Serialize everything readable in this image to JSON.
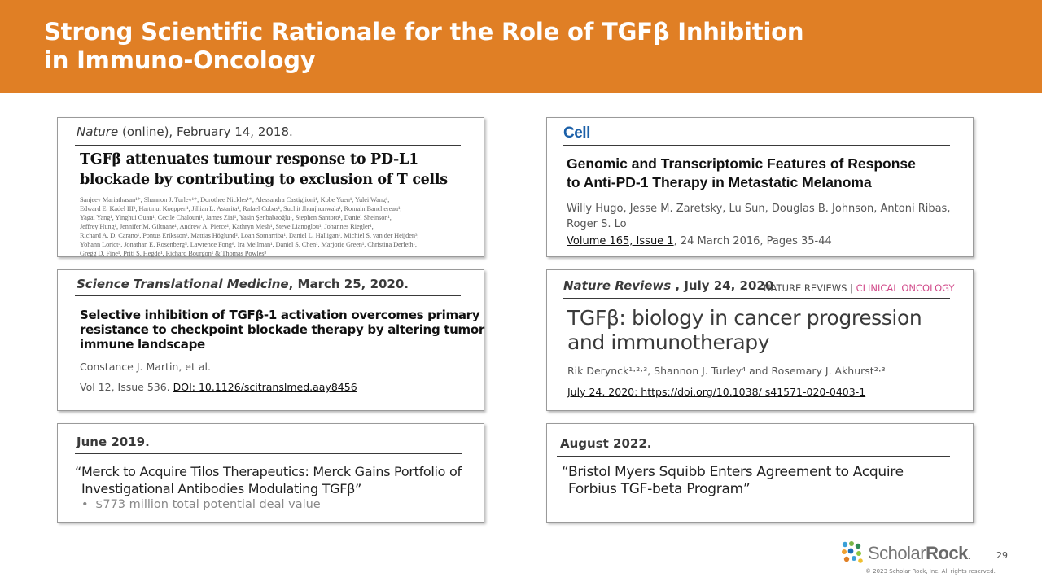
{
  "header": {
    "title_line1": "Strong Scientific Rationale for the Role of TGFβ Inhibition",
    "title_line2": "in Immuno-Oncology"
  },
  "card1": {
    "journal": "Nature",
    "date": " (online), February 14, 2018.",
    "title_line1": "TGFβ attenuates tumour response to PD-L1",
    "title_line2": "blockade by contributing  to exclusion  of T cells",
    "authors": [
      "Sanjeev Mariathasan¹*, Shannon J. Turley¹*, Dorothee Nickles¹*, Alessandra Castiglioni¹, Kobe Yuen¹, Yulei Wang¹,",
      "Edward E. Kadel III¹, Hartmut Koeppen¹, Jillian L. Astarita¹, Rafael Cubas¹, Suchit Jhunjhunwala¹, Romain Banchereau¹,",
      "Yagai Yang¹, Yinghui Guan¹, Cecile Chalouni¹, James Ziai¹, Yasin Şenbabaoğlu¹, Stephen Santoro¹, Daniel Sheinson¹,",
      "Jeffrey Hung¹, Jennifer M. Giltnane¹, Andrew A. Pierce¹, Kathryn Mesh¹, Steve Lianoglou¹, Johannes Riegler¹,",
      "Richard A. D. Carano¹, Pontus Eriksson², Mattias Höglund², Loan Somarriba¹, Daniel L. Halligan¹, Michiel S. van der Heijden³,",
      "Yohann Loriot⁴, Jonathan E. Rosenberg⁵, Lawrence Fong⁶, Ira Mellman¹, Daniel S. Chen¹, Marjorie Green¹, Christina Derleth¹,",
      "Gregg D. Fine¹, Priti S. Hegde¹, Richard Bourgon¹ & Thomas Powles⁸"
    ]
  },
  "card2": {
    "logo": "Cell",
    "title_line1": "Genomic and Transcriptomic Features of Response",
    "title_line2": "to Anti-PD-1 Therapy in Metastatic Melanoma",
    "authors_line1": "Willy Hugo, Jesse M. Zaretsky, Lu Sun, Douglas B. Johnson, Antoni Ribas,",
    "authors_line2": "Roger S. Lo",
    "volume_link": "Volume 165, Issue 1",
    "volume_rest": ", 24 March 2016, Pages 35-44"
  },
  "card3": {
    "journal": "Science Translational Medicine",
    "date": ", March 25, 2020.",
    "title_line1": "Selective inhibition of TGFβ-1 activation overcomes primary",
    "title_line2": "resistance to checkpoint blockade therapy by altering tumor",
    "title_line3": "immune landscape",
    "authors": "Constance  J. Martin,  et al.",
    "vol": "Vol 12, Issue 536. ",
    "doi": "DOI: 10.1126/scitranslmed.aay8456"
  },
  "card4": {
    "journal": "Nature Reviews",
    "date": " , July 24, 2020",
    "brand_left": "NATURE REVIEWS | ",
    "brand_right": "CLINICAL ONCOLOGY",
    "title_line1": "TGFβ: biology in cancer progression",
    "title_line2": "and immunotherapy",
    "authors": "Rik Derynck¹·²·³, Shannon J. Turley⁴ and Rosemary J. Akhurst²·³",
    "link": "July 24, 2020: https://doi.org/10.1038/  s41571-020-0403-1"
  },
  "card5": {
    "date": "June 2019.",
    "quote_line1": "“Merck to Acquire Tilos Therapeutics: Merck Gains Portfolio of",
    "quote_line2": "Investigational Antibodies Modulating TGFβ”",
    "bullet": "$773 million total potential deal value"
  },
  "card6": {
    "date": "August 2022.",
    "quote_line1": "“Bristol Myers Squibb Enters Agreement to Acquire",
    "quote_line2": "Forbius TGF-beta Program”"
  },
  "footer": {
    "logo_light": "Scholar",
    "logo_bold": "Rock",
    "logo_dot": ".",
    "copyright": "© 2023 Scholar Rock, Inc. All rights reserved.",
    "page_number": "29"
  },
  "colors": {
    "header_orange": "#e07f25",
    "cell_blue": "#1a5fa8",
    "clinical_oncology_pink": "#d14a8a"
  }
}
